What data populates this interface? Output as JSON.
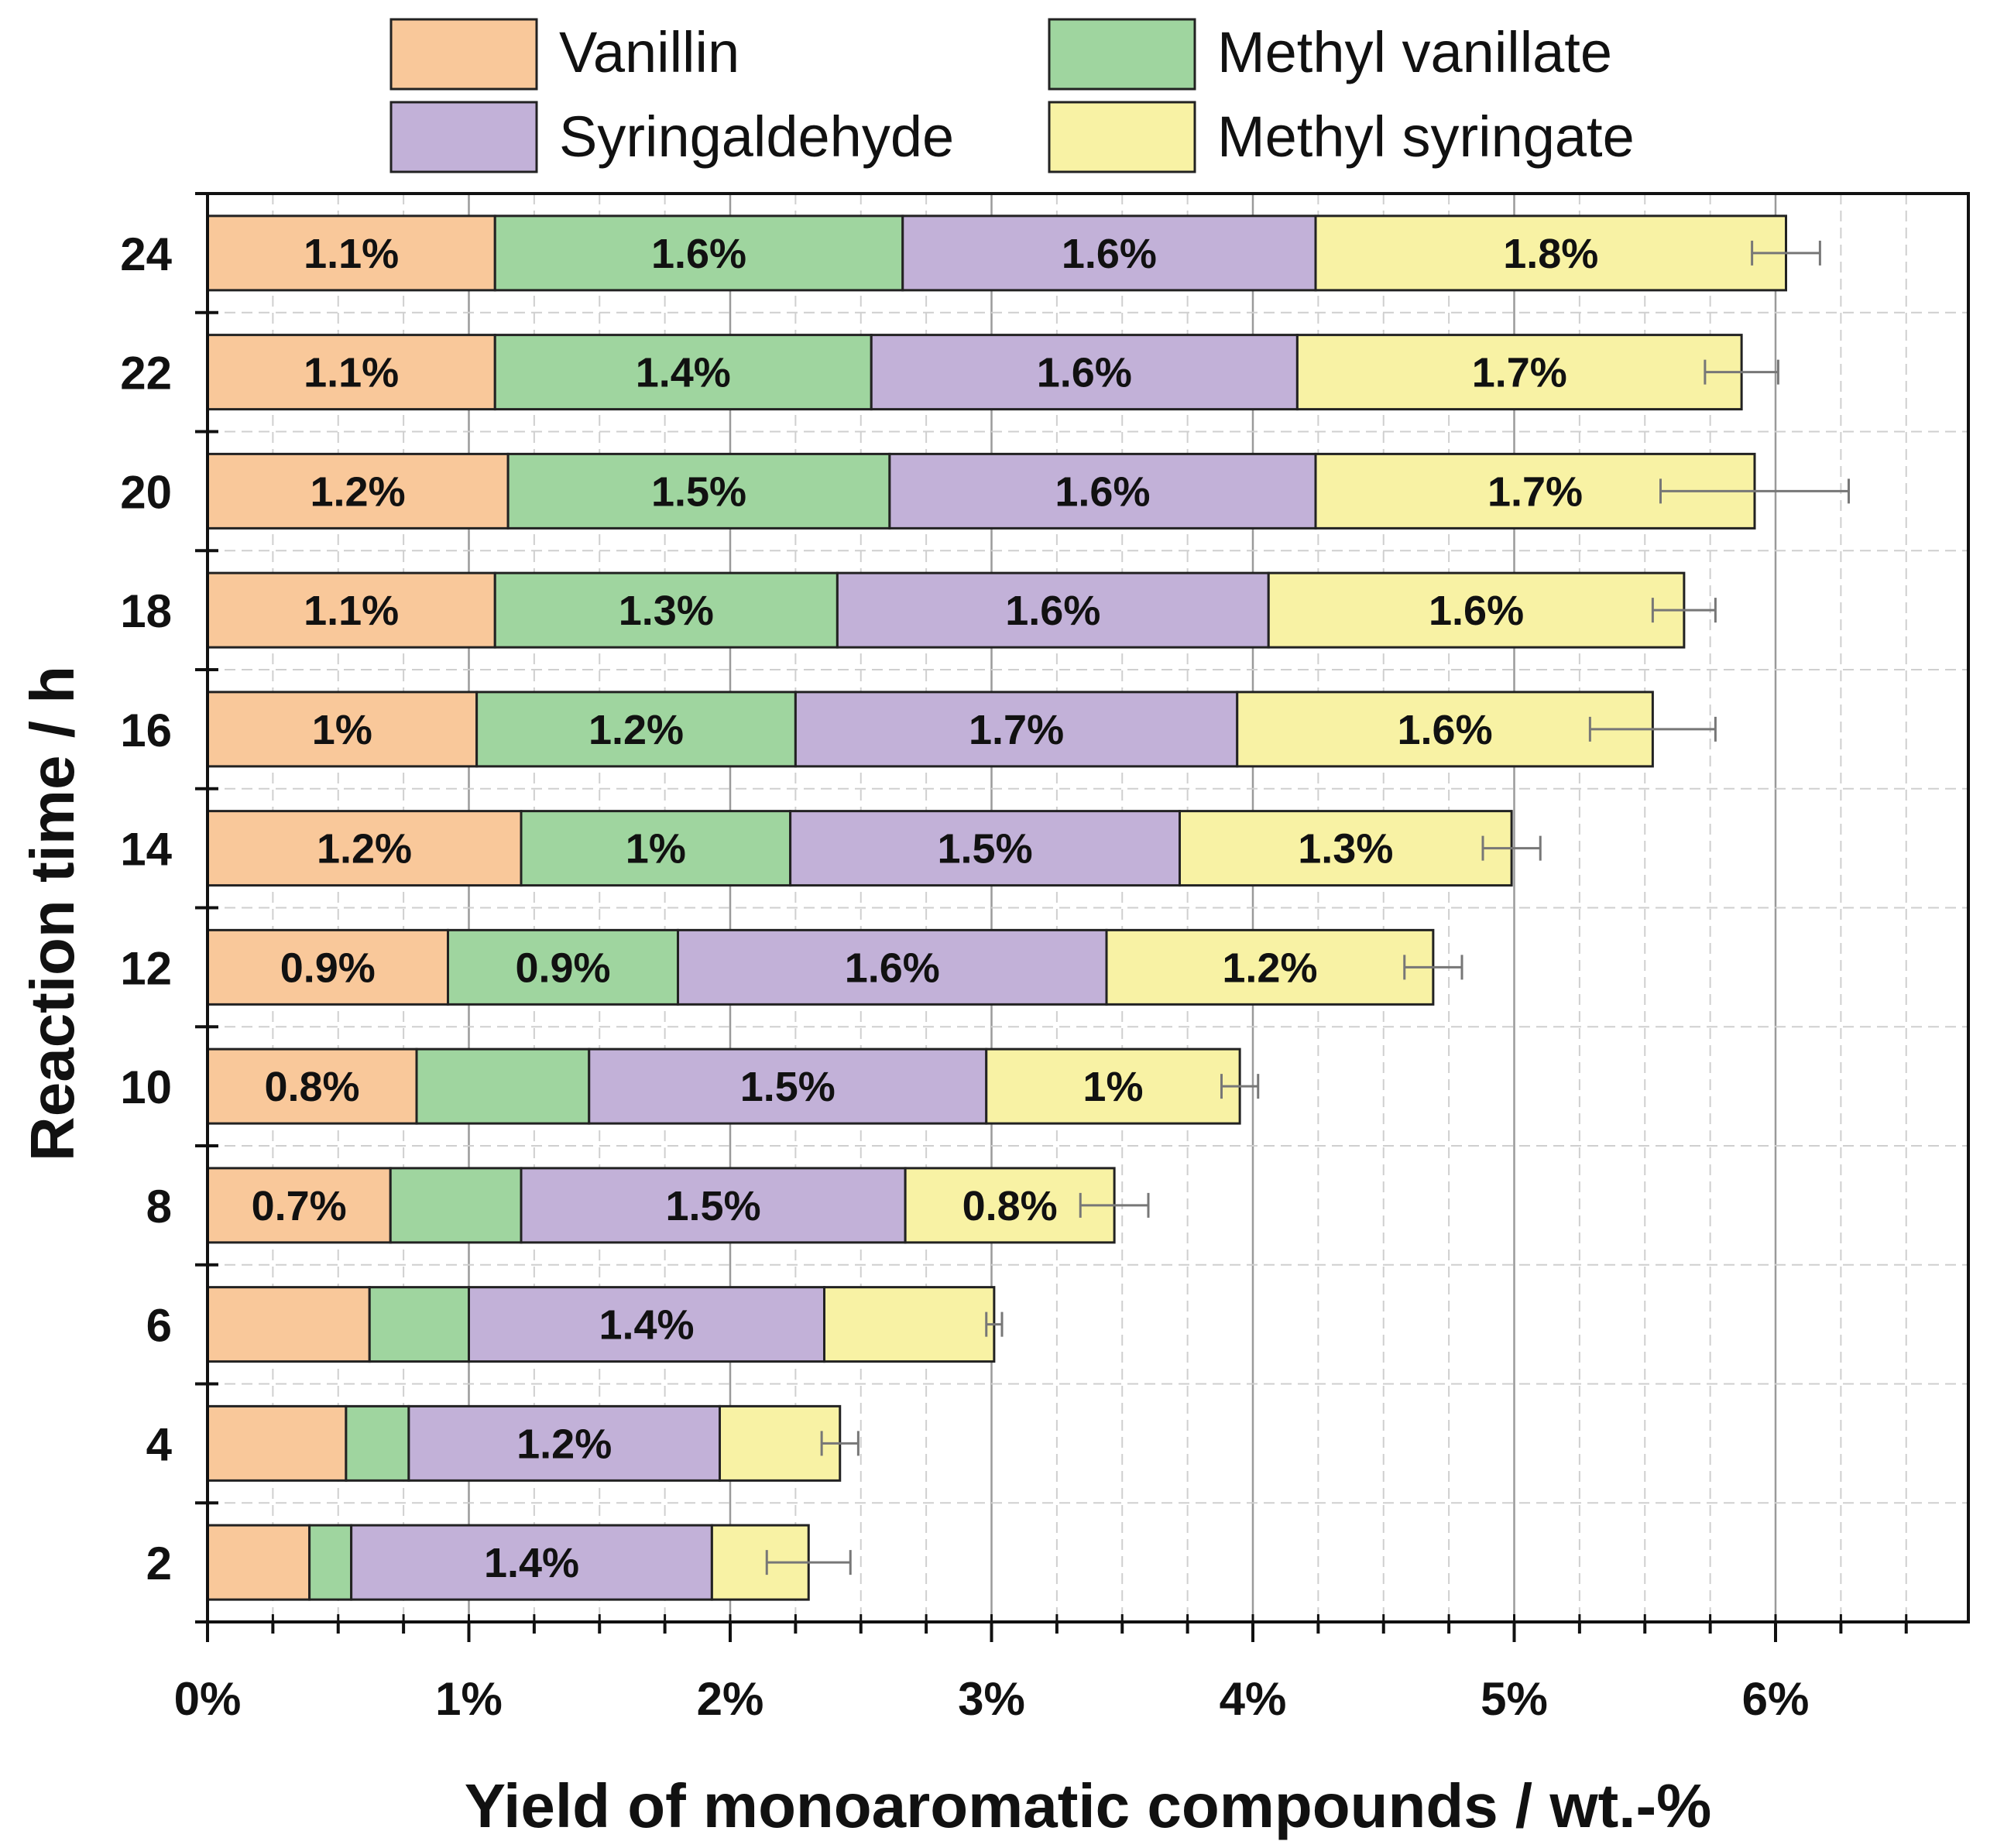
{
  "chart_data": {
    "type": "bar",
    "orientation": "horizontal",
    "stacked": true,
    "xlabel": "Yield of monoaromatic compounds / wt.-%",
    "ylabel": "Reaction time / h",
    "xlim": [
      0,
      6.8
    ],
    "xticks": [
      0,
      1,
      2,
      3,
      4,
      5,
      6
    ],
    "xtick_labels": [
      "0%",
      "1%",
      "2%",
      "3%",
      "4%",
      "5%",
      "6%"
    ],
    "grid": true,
    "legend_position": "top",
    "categories": [
      "24",
      "22",
      "20",
      "18",
      "16",
      "14",
      "12",
      "10",
      "8",
      "6",
      "4",
      "2"
    ],
    "series": [
      {
        "name": "Vanillin",
        "color": "#f9c89a",
        "values": [
          1.1,
          1.1,
          1.15,
          1.1,
          1.03,
          1.2,
          0.92,
          0.8,
          0.7,
          0.62,
          0.53,
          0.39
        ],
        "labels": [
          "1.1%",
          "1.1%",
          "1.2%",
          "1.1%",
          "1%",
          "1.2%",
          "0.9%",
          "0.8%",
          "0.7%",
          "",
          "",
          ""
        ]
      },
      {
        "name": "Methyl vanillate",
        "color": "#9fd59f",
        "values": [
          1.56,
          1.44,
          1.46,
          1.31,
          1.22,
          1.03,
          0.88,
          0.66,
          0.5,
          0.38,
          0.24,
          0.16
        ],
        "labels": [
          "1.6%",
          "1.4%",
          "1.5%",
          "1.3%",
          "1.2%",
          "1%",
          "0.9%",
          "",
          "",
          "",
          "",
          ""
        ]
      },
      {
        "name": "Syringaldehyde",
        "color": "#c2b1d8",
        "values": [
          1.58,
          1.63,
          1.63,
          1.65,
          1.69,
          1.49,
          1.64,
          1.52,
          1.47,
          1.36,
          1.19,
          1.38
        ],
        "labels": [
          "1.6%",
          "1.6%",
          "1.6%",
          "1.6%",
          "1.7%",
          "1.5%",
          "1.6%",
          "1.5%",
          "1.5%",
          "1.4%",
          "1.2%",
          "1.4%"
        ]
      },
      {
        "name": "Methyl syringate",
        "color": "#f8f2a4",
        "values": [
          1.8,
          1.7,
          1.68,
          1.59,
          1.59,
          1.27,
          1.25,
          0.97,
          0.8,
          0.65,
          0.46,
          0.37
        ],
        "labels": [
          "1.8%",
          "1.7%",
          "1.7%",
          "1.6%",
          "1.6%",
          "1.3%",
          "1.2%",
          "1%",
          "0.8%",
          "",
          "",
          ""
        ]
      }
    ],
    "error_bars": [
      0.13,
      0.14,
      0.36,
      0.12,
      0.24,
      0.11,
      0.11,
      0.07,
      0.13,
      0.03,
      0.07,
      0.16
    ]
  }
}
